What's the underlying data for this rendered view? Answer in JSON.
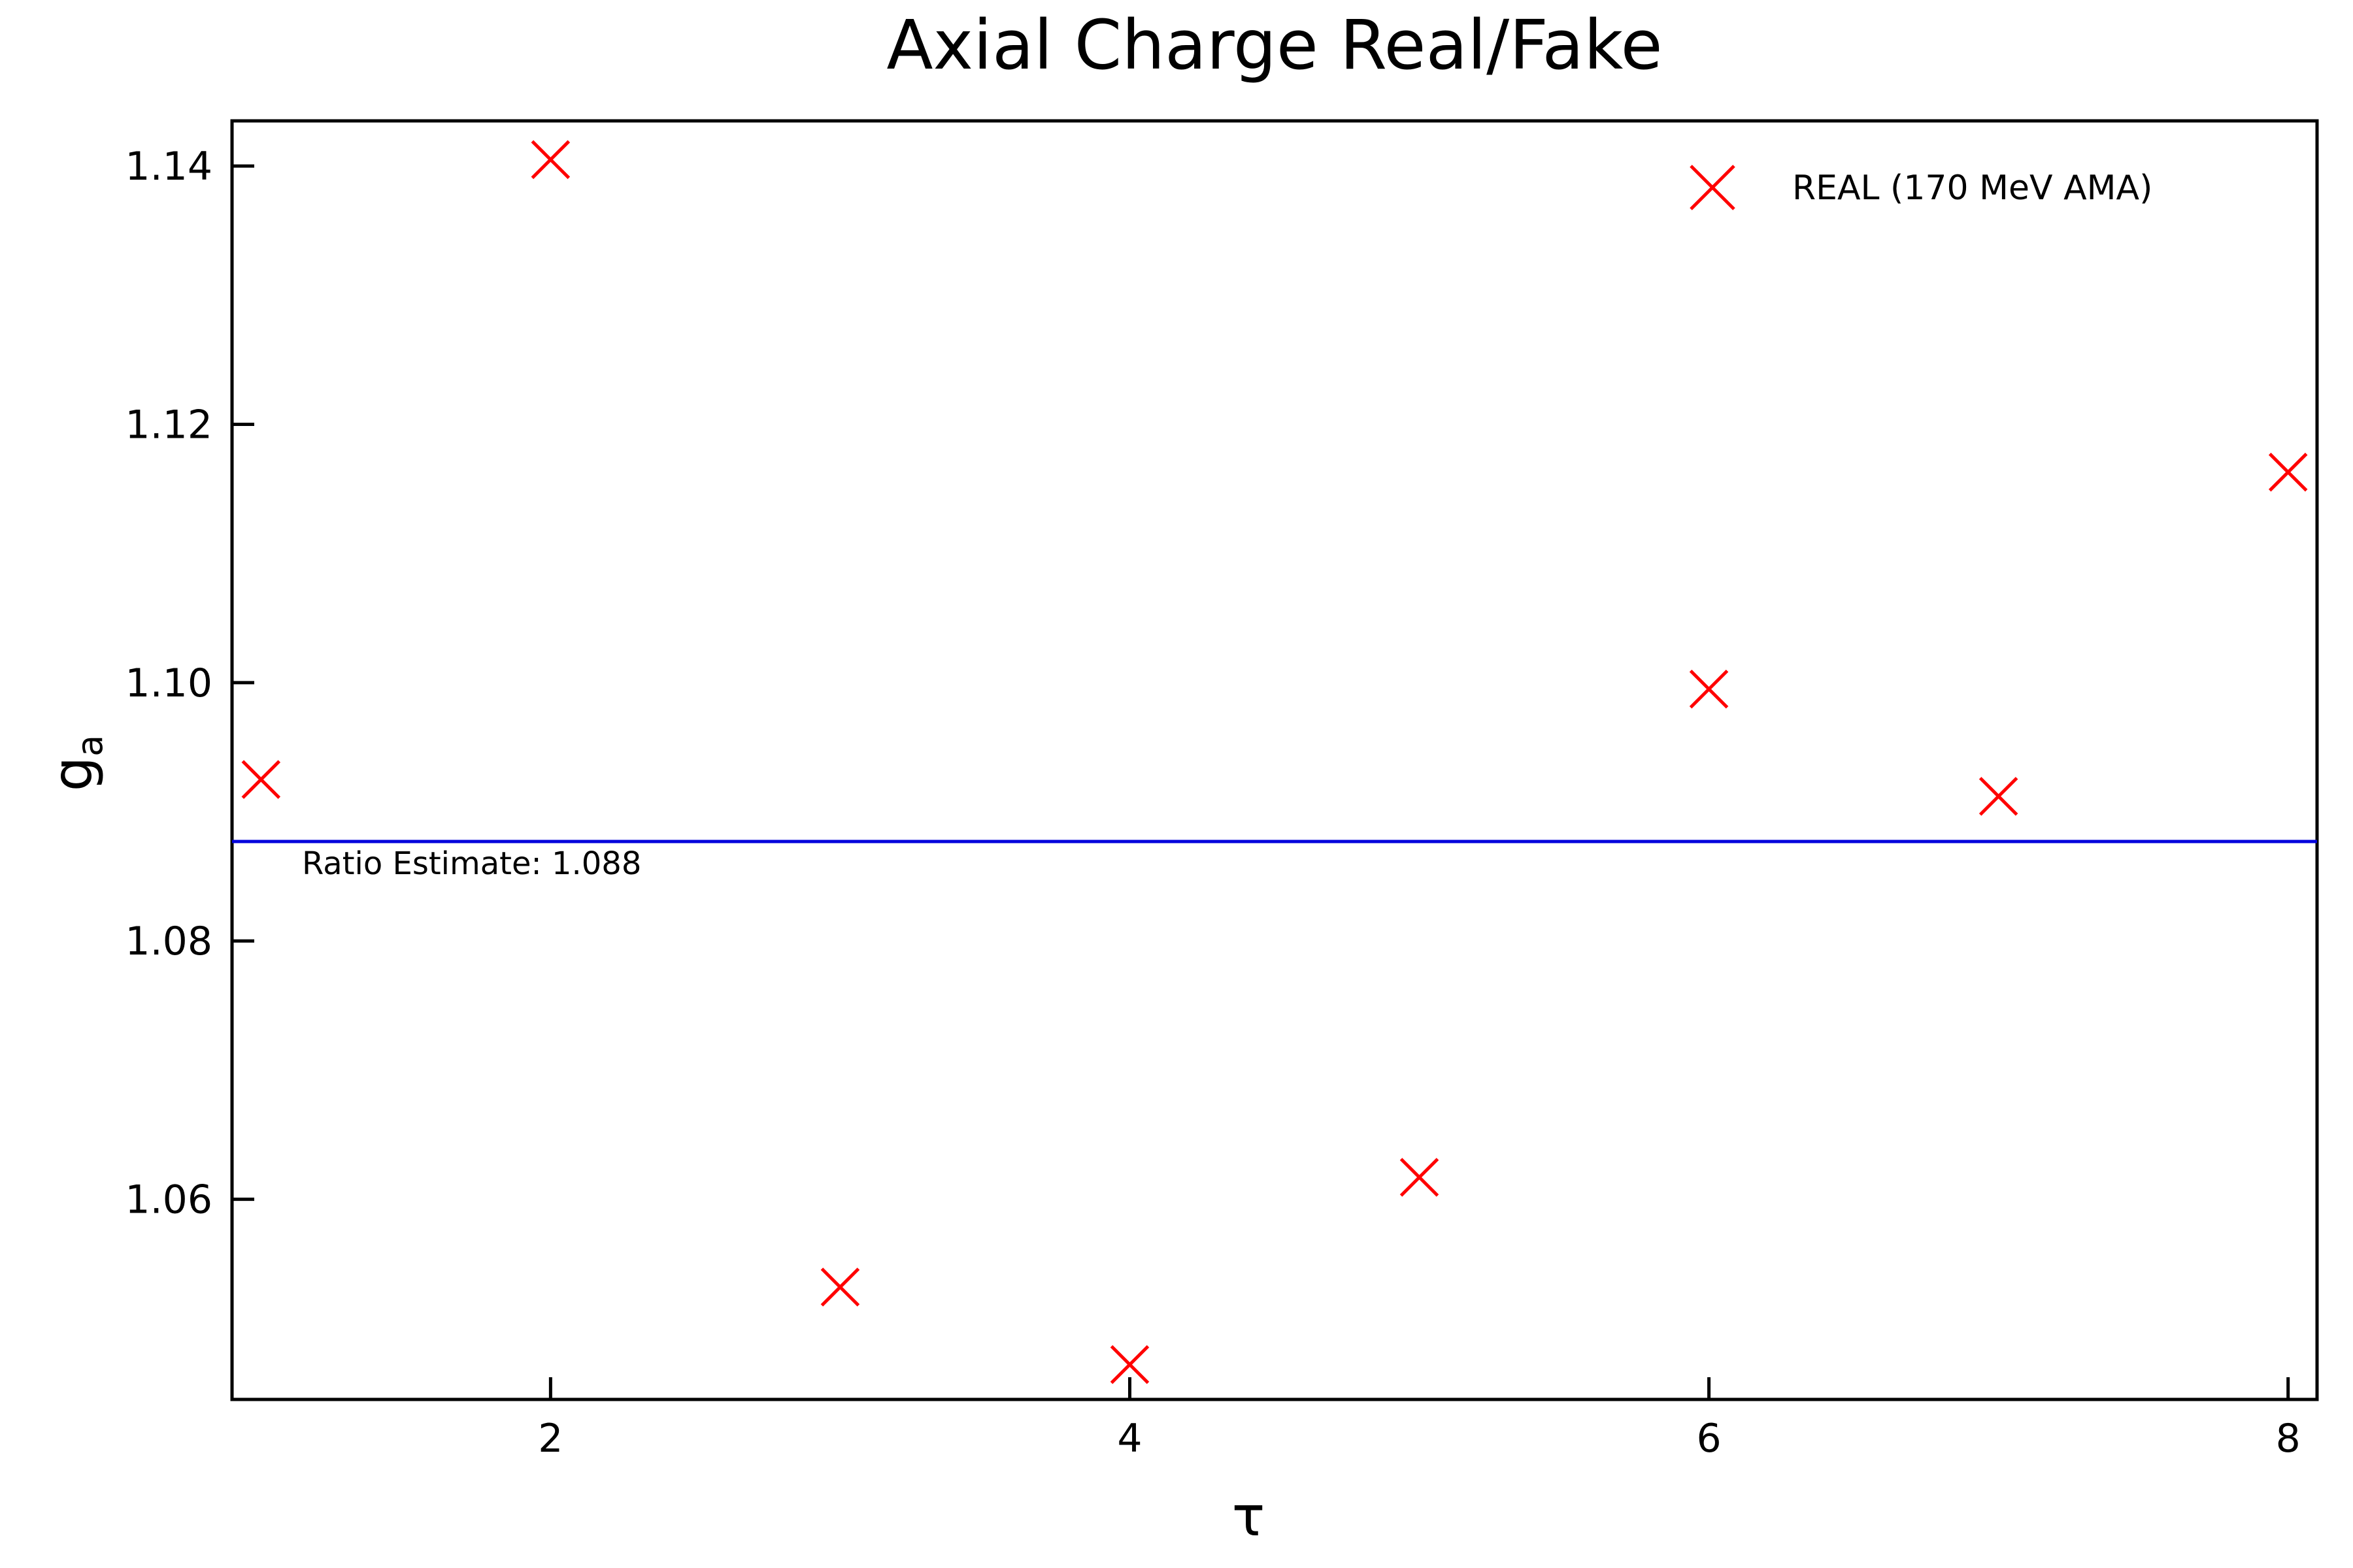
{
  "chart_data": {
    "type": "scatter",
    "title": "Axial Charge Real/Fake",
    "xlabel": "τ",
    "ylabel_main": "g",
    "ylabel_sub": "a",
    "xlim": [
      0.9,
      8.1
    ],
    "ylim": [
      1.0445,
      1.1435
    ],
    "xticks": [
      2,
      4,
      6,
      8
    ],
    "xtick_labels": [
      "2",
      "4",
      "6",
      "8"
    ],
    "yticks": [
      1.06,
      1.08,
      1.1,
      1.12,
      1.14
    ],
    "ytick_labels": [
      "1.06",
      "1.08",
      "1.10",
      "1.12",
      "1.14"
    ],
    "grid": false,
    "legend_position": "top-right",
    "series": [
      {
        "name": "REAL (170 MeV AMA)",
        "color": "#ff0000",
        "marker": "x",
        "x": [
          1,
          2,
          3,
          4,
          5,
          6,
          7,
          8
        ],
        "y": [
          1.0925,
          1.1405,
          1.0532,
          1.0472,
          1.0617,
          1.0995,
          1.0912,
          1.1163
        ]
      }
    ],
    "reference_line": {
      "y": 1.0877,
      "color": "#0000dd",
      "label": "Ratio Estimate: 1.088"
    }
  }
}
